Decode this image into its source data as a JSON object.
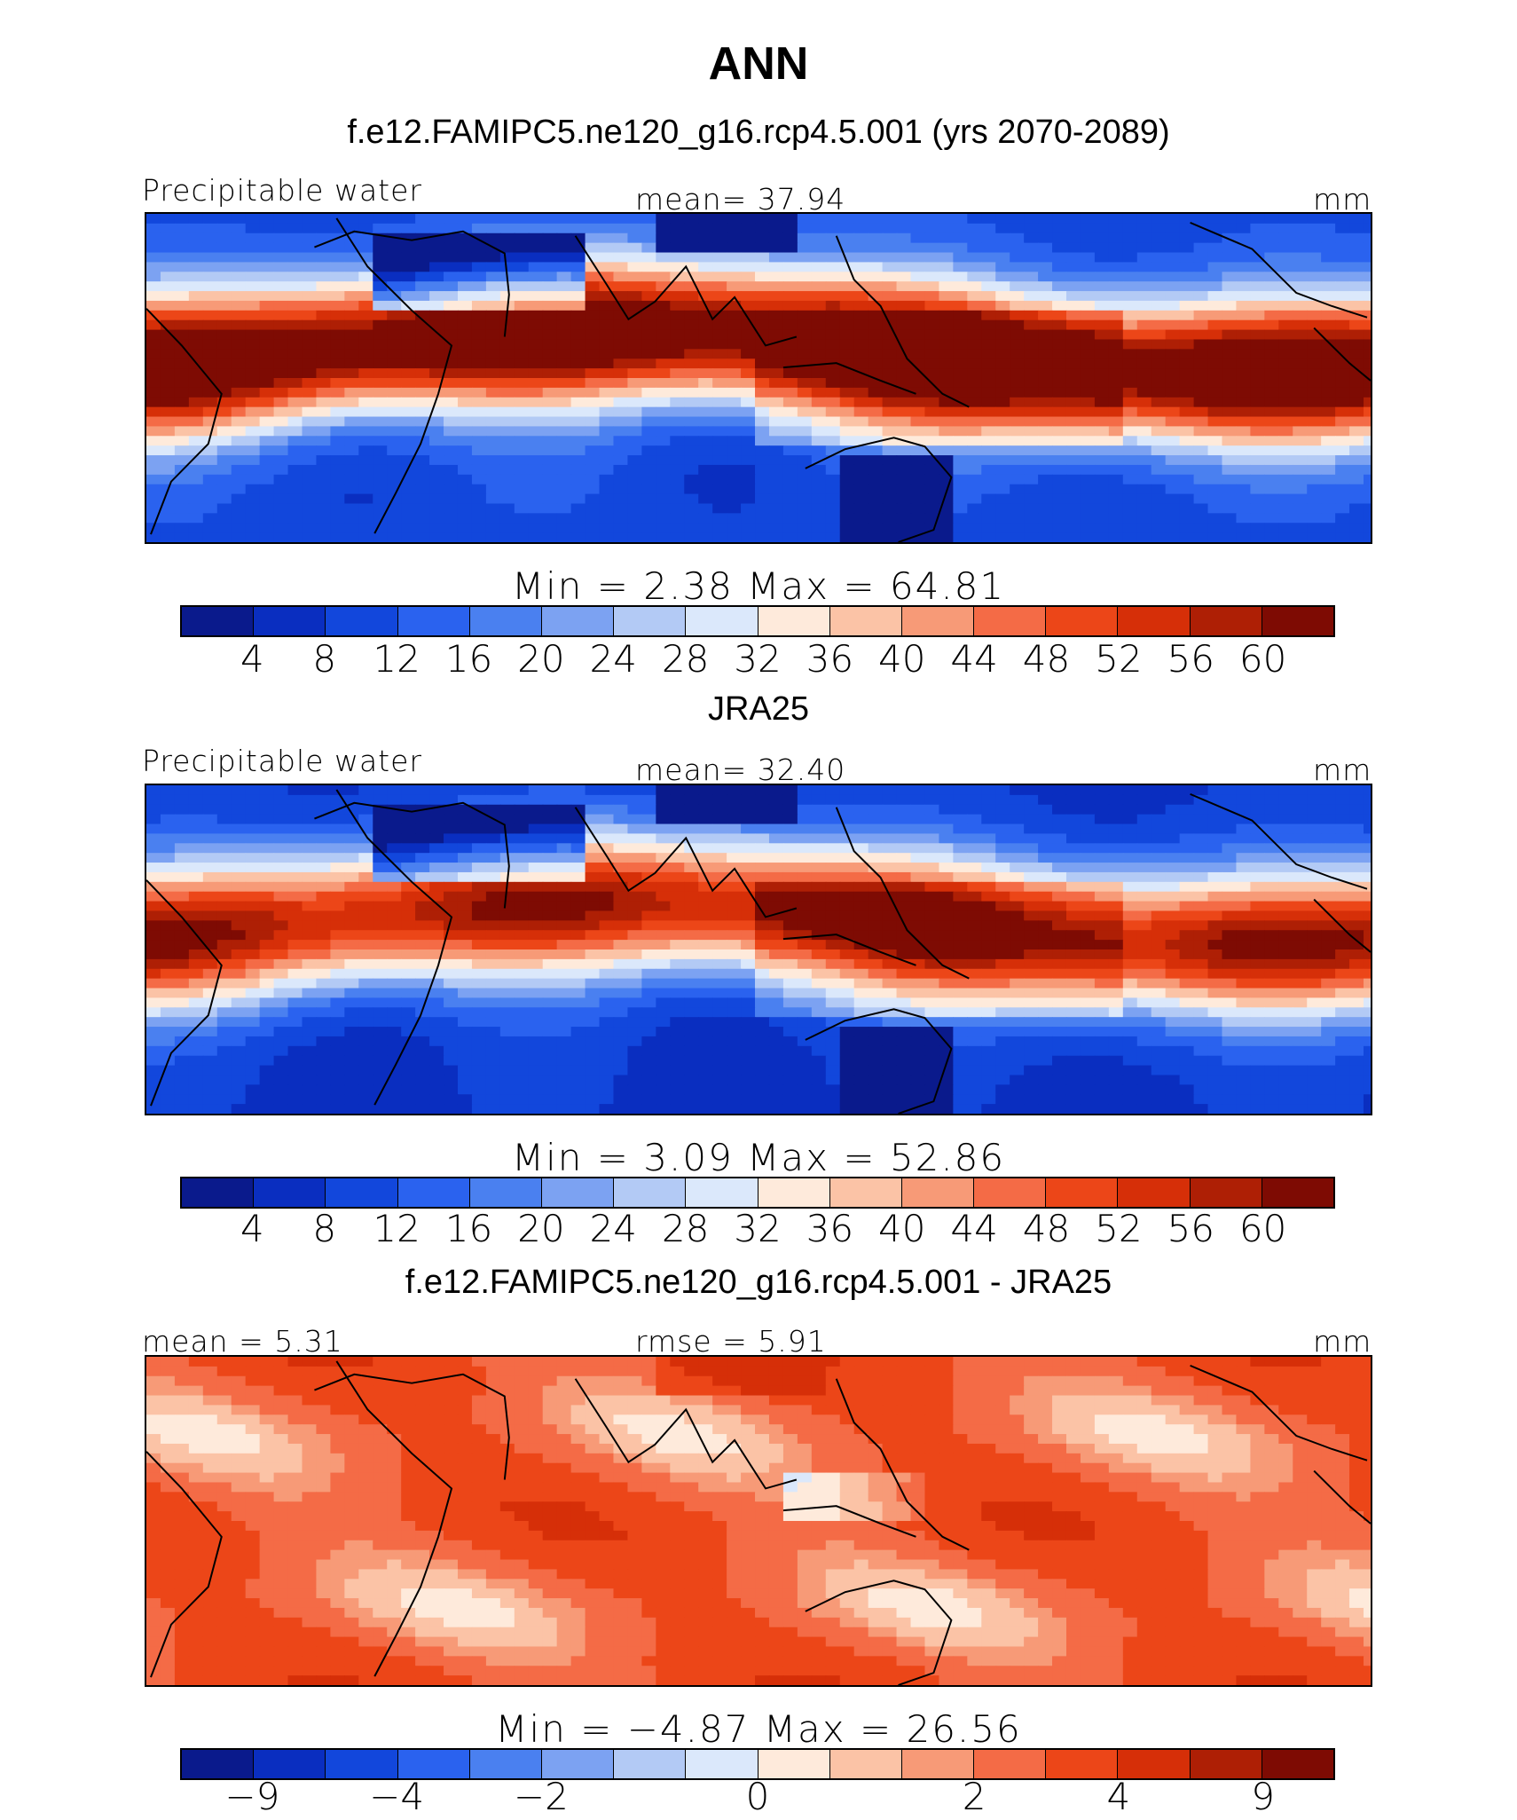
{
  "title": "ANN",
  "colors": [
    "#0a1a8c",
    "#0a2ec0",
    "#1247dc",
    "#2a62ef",
    "#4a80f0",
    "#7ca2f2",
    "#b3caf5",
    "#dbe8fb",
    "#feeadb",
    "#fbc3a6",
    "#f79a77",
    "#f46b46",
    "#ec4618",
    "#d62f08",
    "#ae1f05",
    "#7e0b03"
  ],
  "panels": [
    {
      "subtitle": "f.e12.FAMIPC5.ne120_g16.rcp4.5.001 (yrs 2070-2089)",
      "left_label": "Precipitable water",
      "center_label": "mean=   37.94",
      "units": "mm",
      "minmax": "Min  =     2.38  Max  =    64.81",
      "ticks": [
        "4",
        "8",
        "12",
        "16",
        "20",
        "24",
        "28",
        "32",
        "36",
        "40",
        "44",
        "48",
        "52",
        "56",
        "60"
      ],
      "field": {
        "type": "model",
        "min": 2.38,
        "max": 64.81,
        "mean": 37.94
      }
    },
    {
      "subtitle": "JRA25",
      "left_label": "Precipitable water",
      "center_label": "mean=   32.40",
      "units": "mm",
      "minmax": "Min  =     3.09  Max  =    52.86",
      "ticks": [
        "4",
        "8",
        "12",
        "16",
        "20",
        "24",
        "28",
        "32",
        "36",
        "40",
        "44",
        "48",
        "52",
        "56",
        "60"
      ],
      "field": {
        "type": "obs",
        "min": 3.09,
        "max": 52.86,
        "mean": 32.4
      }
    },
    {
      "subtitle": "f.e12.FAMIPC5.ne120_g16.rcp4.5.001 - JRA25",
      "left_label": "mean  =     5.31",
      "center_label": "rmse  =     5.91",
      "units": "mm",
      "minmax": "Min  =   −4.87  Max  =    26.56",
      "ticks": [
        "−9",
        "−4",
        "−2",
        "0",
        "2",
        "4",
        "9"
      ],
      "field": {
        "type": "diff",
        "min": -4.87,
        "max": 26.56,
        "mean": 5.31,
        "rmse": 5.91
      }
    }
  ]
}
